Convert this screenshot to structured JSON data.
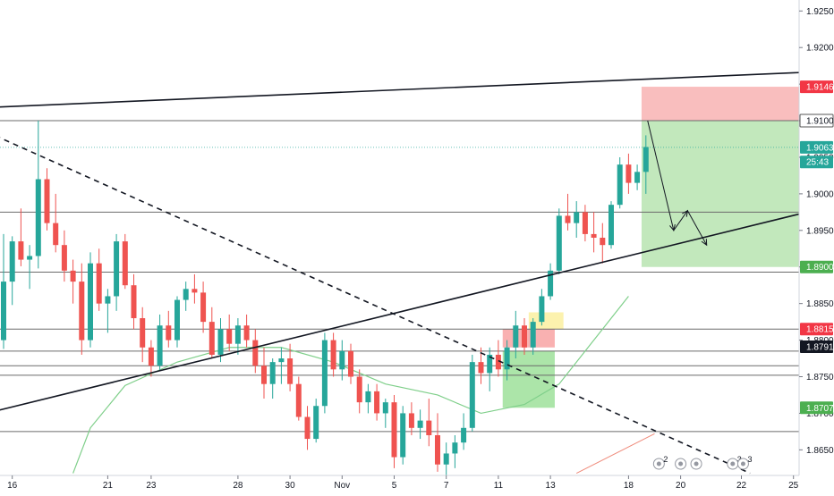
{
  "chart_data": {
    "type": "candlestick",
    "instrument_note": "",
    "y_axis": {
      "ylim": [
        1.8615,
        1.9265
      ],
      "ticks": [
        "1.92500",
        "1.92000",
        "1.91500",
        "1.91000",
        "1.90500",
        "1.90000",
        "1.89500",
        "1.89000",
        "1.88500",
        "1.88000",
        "1.87500",
        "1.87000",
        "1.86500"
      ],
      "tick_values": [
        1.925,
        1.92,
        1.915,
        1.91,
        1.905,
        1.9,
        1.895,
        1.89,
        1.885,
        1.88,
        1.875,
        1.87,
        1.865
      ]
    },
    "x_axis": {
      "tick_labels": [
        {
          "label": "16",
          "bar": 1
        },
        {
          "label": "21",
          "bar": 12
        },
        {
          "label": "23",
          "bar": 17
        },
        {
          "label": "28",
          "bar": 27
        },
        {
          "label": "30",
          "bar": 33
        },
        {
          "label": "Nov",
          "bar": 39
        },
        {
          "label": "5",
          "bar": 45
        },
        {
          "label": "7",
          "bar": 51
        },
        {
          "label": "11",
          "bar": 57
        },
        {
          "label": "13",
          "bar": 63
        },
        {
          "label": "18",
          "bar": 72
        },
        {
          "label": "20",
          "bar": 78
        },
        {
          "label": "22",
          "bar": 85
        },
        {
          "label": "25",
          "bar": 91
        }
      ],
      "bar_count": 75
    },
    "price_labels": [
      {
        "label": "1.91464",
        "value": 1.91464,
        "bg": "#f23645",
        "fg": "#ffffff"
      },
      {
        "label": "1.91000",
        "value": 1.91,
        "bg": "#ffffff",
        "fg": "#131722",
        "border": "#555555"
      },
      {
        "label": "1.90636",
        "value": 1.90636,
        "bg": "#26a69a",
        "fg": "#ffffff"
      },
      {
        "label": "25:43",
        "value": 1.90436,
        "bg": "#26a69a",
        "fg": "#ffffff"
      },
      {
        "label": "1.89000",
        "value": 1.89,
        "bg": "#4caf50",
        "fg": "#ffffff"
      },
      {
        "label": "1.88151",
        "value": 1.88151,
        "bg": "#f23645",
        "fg": "#ffffff"
      },
      {
        "label": "1.87910",
        "value": 1.8791,
        "bg": "#131722",
        "fg": "#ffffff"
      },
      {
        "label": "1.87075",
        "value": 1.87075,
        "bg": "#4caf50",
        "fg": "#ffffff"
      }
    ],
    "horizontal_levels": [
      1.91,
      1.8975,
      1.8893,
      1.8815,
      1.8785,
      1.8765,
      1.8752,
      1.8675
    ],
    "current_price_line": 1.90636,
    "candles": [
      [
        1.88,
        1.8945,
        1.8788,
        1.888
      ],
      [
        1.888,
        1.8942,
        1.8848,
        1.8935
      ],
      [
        1.8935,
        1.898,
        1.8901,
        1.891
      ],
      [
        1.891,
        1.893,
        1.887,
        1.8915
      ],
      [
        1.8915,
        1.91,
        1.8898,
        1.902
      ],
      [
        1.902,
        1.9035,
        1.895,
        1.896
      ],
      [
        1.896,
        1.9,
        1.892,
        1.893
      ],
      [
        1.893,
        1.895,
        1.888,
        1.8895
      ],
      [
        1.8895,
        1.891,
        1.885,
        1.888
      ],
      [
        1.888,
        1.8905,
        1.878,
        1.88
      ],
      [
        1.88,
        1.892,
        1.879,
        1.8905
      ],
      [
        1.8905,
        1.8925,
        1.884,
        1.885
      ],
      [
        1.885,
        1.887,
        1.881,
        1.886
      ],
      [
        1.886,
        1.8945,
        1.884,
        1.8935
      ],
      [
        1.8935,
        1.8945,
        1.887,
        1.8875
      ],
      [
        1.8875,
        1.889,
        1.8815,
        1.883
      ],
      [
        1.883,
        1.8845,
        1.877,
        1.879
      ],
      [
        1.879,
        1.88,
        1.875,
        1.8765
      ],
      [
        1.8765,
        1.8835,
        1.8758,
        1.882
      ],
      [
        1.882,
        1.884,
        1.879,
        1.88
      ],
      [
        1.88,
        1.886,
        1.879,
        1.8855
      ],
      [
        1.8855,
        1.888,
        1.884,
        1.887
      ],
      [
        1.887,
        1.889,
        1.885,
        1.8865
      ],
      [
        1.8865,
        1.888,
        1.881,
        1.8825
      ],
      [
        1.8825,
        1.8845,
        1.8775,
        1.878
      ],
      [
        1.878,
        1.883,
        1.877,
        1.8815
      ],
      [
        1.8815,
        1.8835,
        1.8785,
        1.8795
      ],
      [
        1.8795,
        1.883,
        1.878,
        1.882
      ],
      [
        1.882,
        1.8835,
        1.879,
        1.88
      ],
      [
        1.88,
        1.8815,
        1.8755,
        1.8765
      ],
      [
        1.8765,
        1.879,
        1.872,
        1.874
      ],
      [
        1.874,
        1.8775,
        1.872,
        1.877
      ],
      [
        1.877,
        1.879,
        1.874,
        1.8775
      ],
      [
        1.8775,
        1.8795,
        1.873,
        1.874
      ],
      [
        1.874,
        1.875,
        1.869,
        1.8695
      ],
      [
        1.8695,
        1.871,
        1.865,
        1.8665
      ],
      [
        1.8665,
        1.872,
        1.866,
        1.871
      ],
      [
        1.871,
        1.881,
        1.87,
        1.88
      ],
      [
        1.88,
        1.881,
        1.875,
        1.876
      ],
      [
        1.876,
        1.88,
        1.8745,
        1.8785
      ],
      [
        1.8785,
        1.8795,
        1.874,
        1.875
      ],
      [
        1.875,
        1.876,
        1.87,
        1.8715
      ],
      [
        1.8715,
        1.874,
        1.87,
        1.873
      ],
      [
        1.873,
        1.874,
        1.869,
        1.87
      ],
      [
        1.87,
        1.872,
        1.868,
        1.8715
      ],
      [
        1.8715,
        1.8725,
        1.8625,
        1.864
      ],
      [
        1.864,
        1.871,
        1.863,
        1.87
      ],
      [
        1.87,
        1.8715,
        1.867,
        1.868
      ],
      [
        1.868,
        1.8705,
        1.8665,
        1.869
      ],
      [
        1.869,
        1.872,
        1.8655,
        1.867
      ],
      [
        1.867,
        1.87,
        1.862,
        1.863
      ],
      [
        1.863,
        1.866,
        1.8615,
        1.8645
      ],
      [
        1.8645,
        1.867,
        1.8625,
        1.866
      ],
      [
        1.866,
        1.87,
        1.865,
        1.868
      ],
      [
        1.868,
        1.878,
        1.8675,
        1.877
      ],
      [
        1.877,
        1.879,
        1.874,
        1.8755
      ],
      [
        1.8755,
        1.879,
        1.873,
        1.878
      ],
      [
        1.878,
        1.88,
        1.875,
        1.876
      ],
      [
        1.876,
        1.88,
        1.8745,
        1.879
      ],
      [
        1.879,
        1.884,
        1.8775,
        1.882
      ],
      [
        1.882,
        1.883,
        1.878,
        1.879
      ],
      [
        1.879,
        1.883,
        1.878,
        1.8825
      ],
      [
        1.8825,
        1.887,
        1.882,
        1.886
      ],
      [
        1.886,
        1.8905,
        1.8855,
        1.8895
      ],
      [
        1.8895,
        1.898,
        1.889,
        1.897
      ],
      [
        1.897,
        1.9,
        1.895,
        1.896
      ],
      [
        1.896,
        1.899,
        1.894,
        1.8975
      ],
      [
        1.8975,
        1.8985,
        1.8935,
        1.8945
      ],
      [
        1.8945,
        1.8975,
        1.892,
        1.894
      ],
      [
        1.894,
        1.896,
        1.8905,
        1.893
      ],
      [
        1.893,
        1.899,
        1.8925,
        1.8985
      ],
      [
        1.8985,
        1.905,
        1.898,
        1.904
      ],
      [
        1.904,
        1.9055,
        1.9,
        1.9015
      ],
      [
        1.9015,
        1.904,
        1.9005,
        1.903
      ],
      [
        1.903,
        1.908,
        1.9,
        1.9064
      ]
    ],
    "moving_average": {
      "color": "#7fcf8a",
      "values": [
        [
          8,
          1.8618
        ],
        [
          10,
          1.868
        ],
        [
          14,
          1.8738
        ],
        [
          20,
          1.877
        ],
        [
          26,
          1.879
        ],
        [
          32,
          1.879
        ],
        [
          38,
          1.877
        ],
        [
          44,
          1.874
        ],
        [
          50,
          1.8725
        ],
        [
          55,
          1.87
        ],
        [
          60,
          1.8712
        ],
        [
          64,
          1.874
        ],
        [
          68,
          1.88
        ],
        [
          72,
          1.886
        ]
      ]
    },
    "trendlines": [
      {
        "name": "upper-trendline",
        "style": "solid",
        "color": "#131722",
        "points": [
          [
            -2,
            1.9118
          ],
          [
            96,
            1.9168
          ]
        ]
      },
      {
        "name": "rising-trendline",
        "style": "solid",
        "color": "#131722",
        "points": [
          [
            -2,
            1.87
          ],
          [
            96,
            1.8985
          ]
        ]
      },
      {
        "name": "falling-trendline",
        "style": "dashed",
        "color": "#131722",
        "points": [
          [
            -2,
            1.9085
          ],
          [
            86,
            1.8618
          ]
        ]
      },
      {
        "name": "red-line",
        "style": "solid",
        "color": "#ef8a7a",
        "points": [
          [
            66,
            1.8618
          ],
          [
            75,
            1.8672
          ]
        ]
      }
    ],
    "boxes": [
      {
        "name": "stop-zone",
        "color": "#f8b3b3",
        "x": [
          73.5,
          96
        ],
        "y": [
          1.91,
          1.91464
        ]
      },
      {
        "name": "target-zone",
        "color": "#b7e4b0",
        "x": [
          73.5,
          96
        ],
        "y": [
          1.89,
          1.91
        ]
      },
      {
        "name": "pre-zone-green",
        "color": "#9ee09a",
        "x": [
          57.5,
          63.5
        ],
        "y": [
          1.87075,
          1.8785
        ]
      },
      {
        "name": "pre-zone-red",
        "color": "#f8a3a3",
        "x": [
          57.5,
          63.5
        ],
        "y": [
          1.879,
          1.88151
        ]
      },
      {
        "name": "yellow-zone",
        "color": "#fbf0a0",
        "x": [
          60.5,
          64.5
        ],
        "y": [
          1.8815,
          1.8838
        ]
      }
    ],
    "projection_arrow": [
      [
        74.2,
        1.91
      ],
      [
        77.2,
        1.895
      ],
      [
        78.8,
        1.8977
      ],
      [
        81.0,
        1.893
      ]
    ],
    "event_markers": [
      {
        "bar": 75.5,
        "count": "2"
      },
      {
        "bar": 78.0,
        "count": ""
      },
      {
        "bar": 79.8,
        "count": ""
      },
      {
        "bar": 84.0,
        "count": "3"
      },
      {
        "bar": 85.2,
        "count": "3"
      }
    ],
    "colors": {
      "up": "#26a69a",
      "down": "#ef5350",
      "level_line": "#6b6b6b",
      "axis_text": "#131722",
      "grid_axis_border": "#d1d4dc"
    }
  }
}
